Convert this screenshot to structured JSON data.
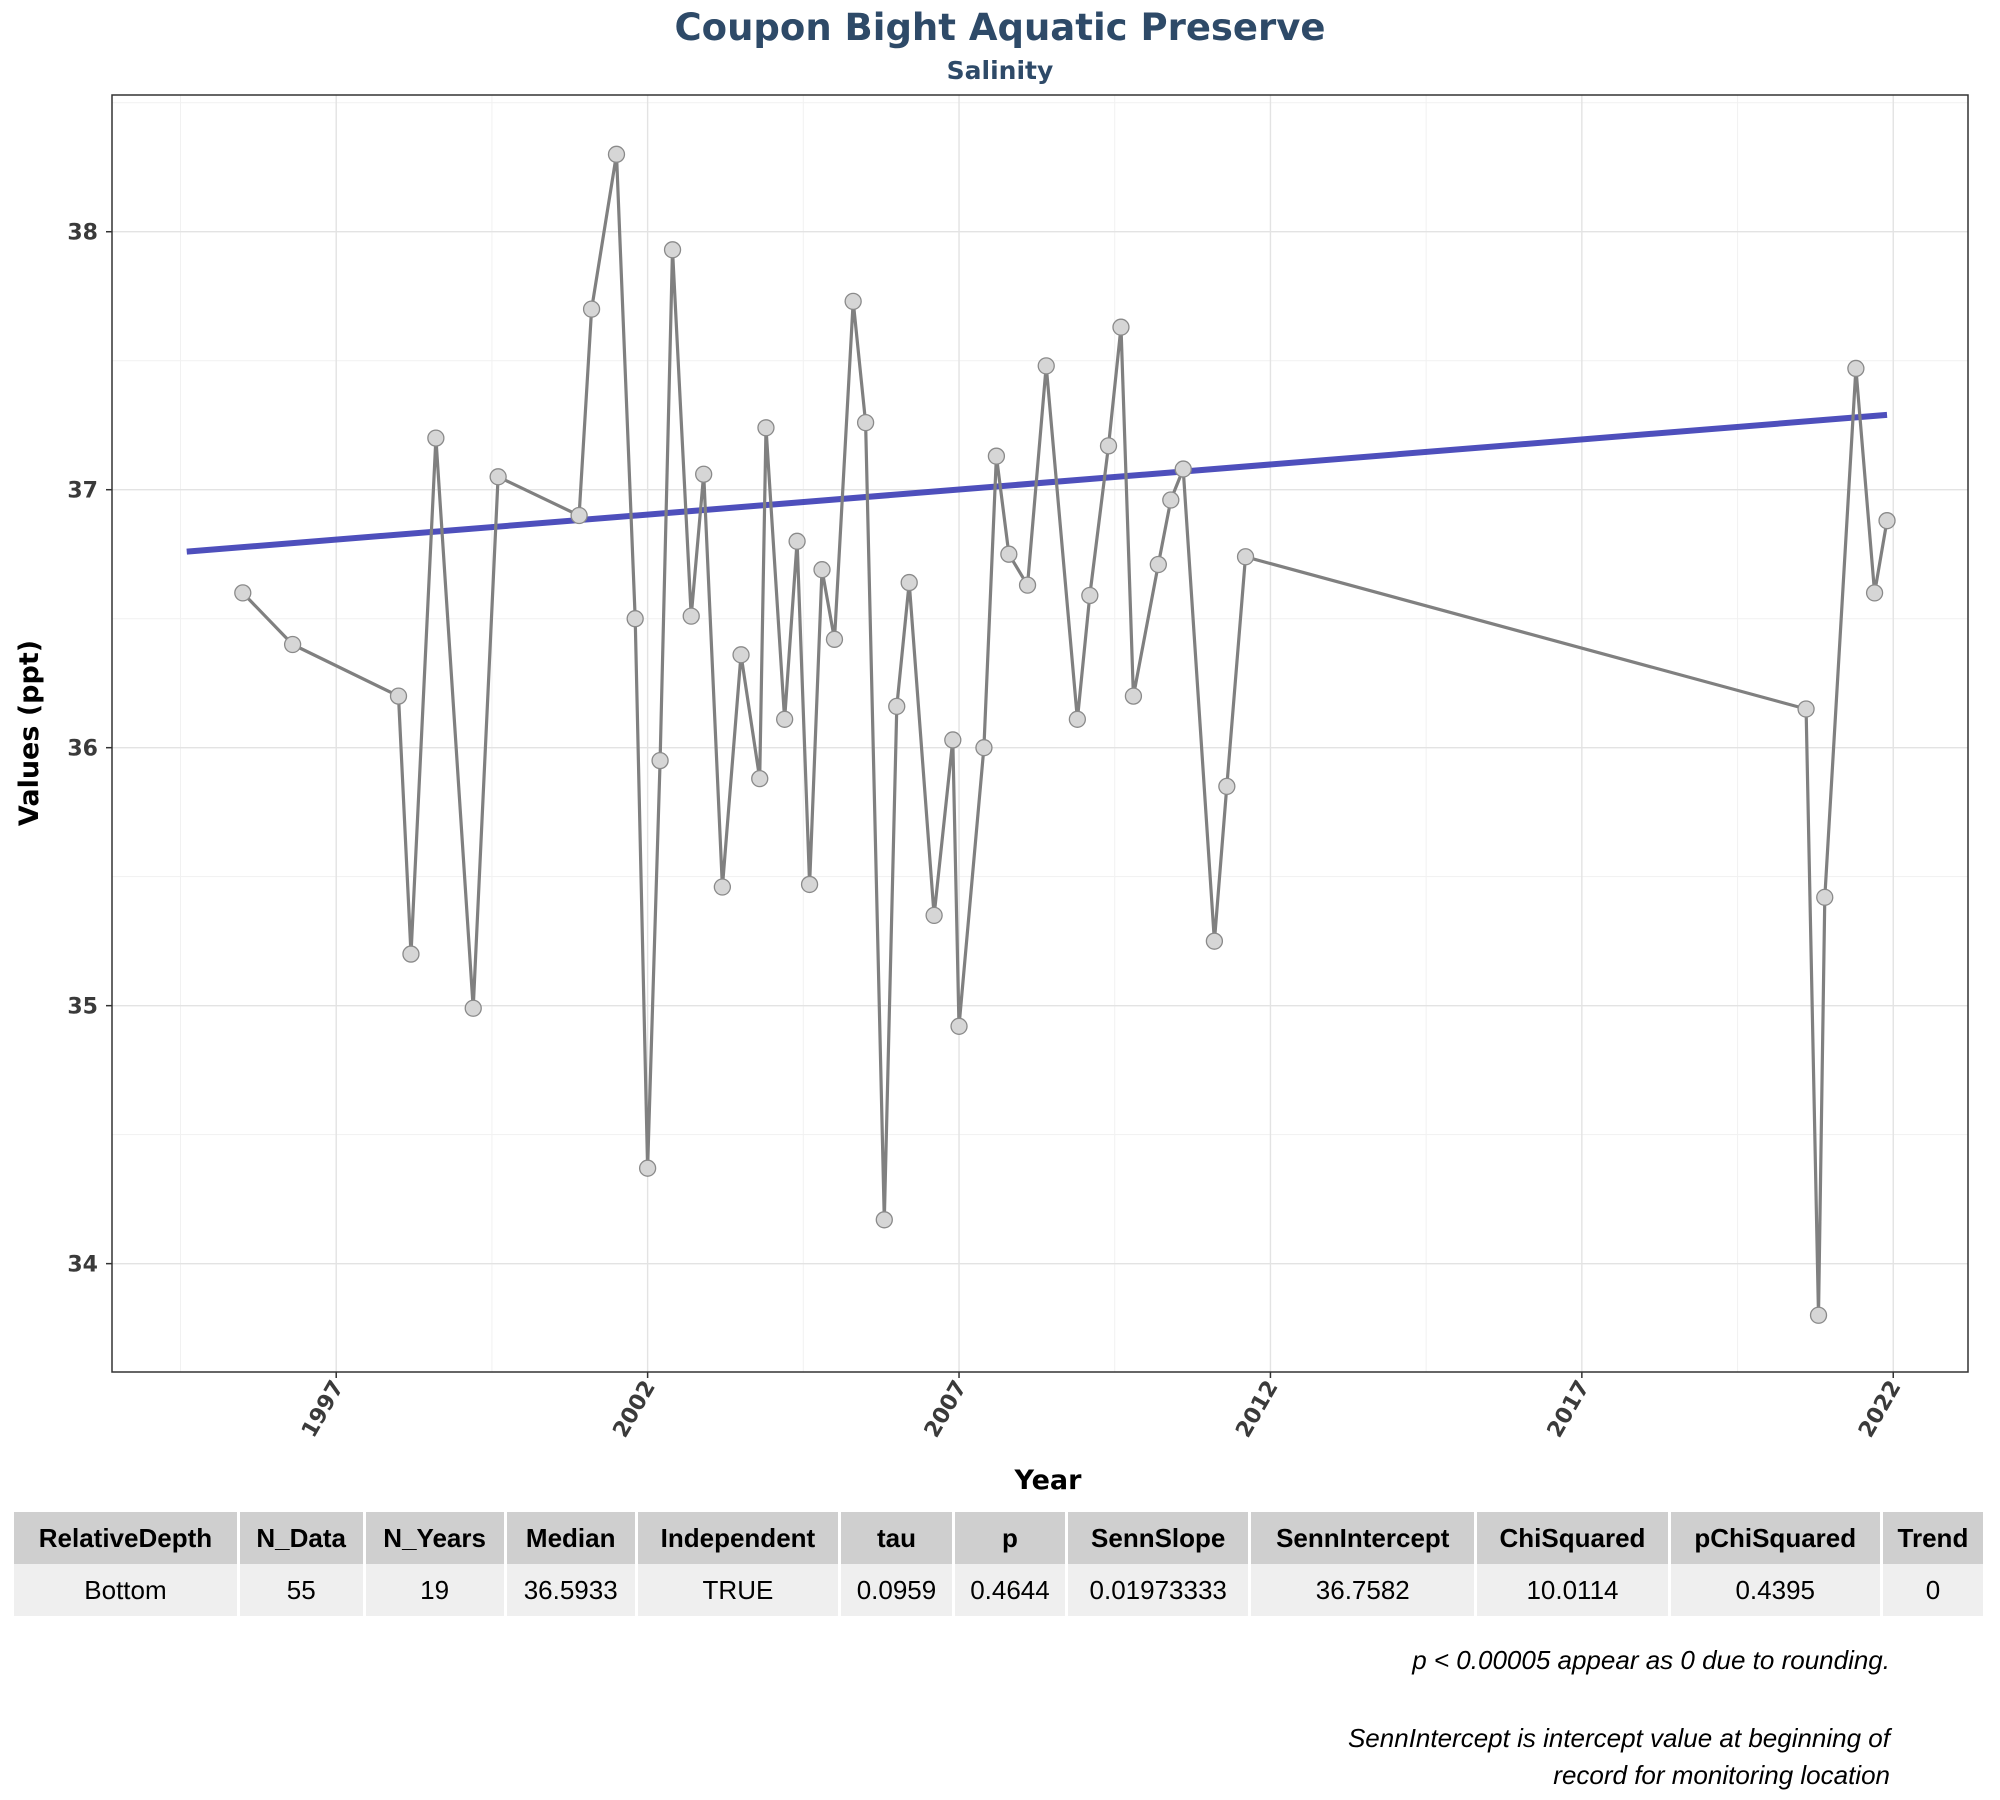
{
  "chart_data": {
    "type": "line",
    "title": "Coupon Bight Aquatic Preserve",
    "subtitle": "Salinity",
    "xlabel": "Year",
    "ylabel": "Values (ppt)",
    "xlim": [
      1993.4,
      2023.2
    ],
    "ylim": [
      33.58,
      38.53
    ],
    "x_ticks": [
      1997,
      2002,
      2007,
      2012,
      2017,
      2022
    ],
    "y_ticks": [
      34,
      35,
      36,
      37,
      38
    ],
    "grid": true,
    "x": [
      1995.5,
      1996.3,
      1998.0,
      1998.2,
      1998.6,
      1999.2,
      1999.6,
      2000.9,
      2001.1,
      2001.5,
      2001.8,
      2002.0,
      2002.2,
      2002.4,
      2002.7,
      2002.9,
      2003.2,
      2003.5,
      2003.8,
      2003.9,
      2004.2,
      2004.4,
      2004.6,
      2004.8,
      2005.0,
      2005.3,
      2005.5,
      2005.8,
      2006.0,
      2006.2,
      2006.6,
      2006.9,
      2007.0,
      2007.4,
      2007.6,
      2007.8,
      2008.1,
      2008.4,
      2008.9,
      2009.1,
      2009.4,
      2009.6,
      2009.8,
      2010.2,
      2010.4,
      2010.6,
      2011.1,
      2011.3,
      2011.6,
      2020.6,
      2020.8,
      2020.9,
      2021.4,
      2021.7,
      2021.9
    ],
    "series": [
      {
        "values": [
          36.6,
          36.4,
          36.2,
          35.2,
          37.2,
          34.99,
          37.05,
          36.9,
          37.7,
          38.3,
          36.5,
          34.37,
          35.95,
          37.93,
          36.51,
          37.06,
          35.46,
          36.36,
          35.88,
          37.24,
          36.11,
          36.8,
          35.47,
          36.69,
          36.42,
          37.73,
          37.26,
          34.17,
          36.16,
          36.64,
          35.35,
          36.03,
          34.92,
          36.0,
          37.13,
          36.75,
          36.63,
          37.48,
          36.11,
          36.59,
          37.17,
          37.63,
          36.2,
          36.71,
          36.96,
          37.08,
          35.25,
          35.85,
          36.74,
          36.15,
          33.8,
          35.42,
          37.47,
          36.6,
          36.88
        ],
        "color": "#808080"
      }
    ],
    "trend": {
      "x": [
        1994.6,
        2021.9
      ],
      "values": [
        36.76,
        37.29
      ],
      "color": "#3b3db5"
    }
  },
  "table": {
    "headers": [
      "RelativeDepth",
      "N_Data",
      "N_Years",
      "Median",
      "Independent",
      "tau",
      "p",
      "SennSlope",
      "SennIntercept",
      "ChiSquared",
      "pChiSquared",
      "Trend"
    ],
    "rows": [
      [
        "Bottom",
        "55",
        "19",
        "36.5933",
        "TRUE",
        "0.0959",
        "0.4644",
        "0.01973333",
        "36.7582",
        "10.0114",
        "0.4395",
        "0"
      ]
    ]
  },
  "notes": {
    "rounding": "p < 0.00005 appear as 0 due to rounding.",
    "intercept_line1": "SennIntercept is intercept value at beginning of",
    "intercept_line2": "record for monitoring location"
  }
}
